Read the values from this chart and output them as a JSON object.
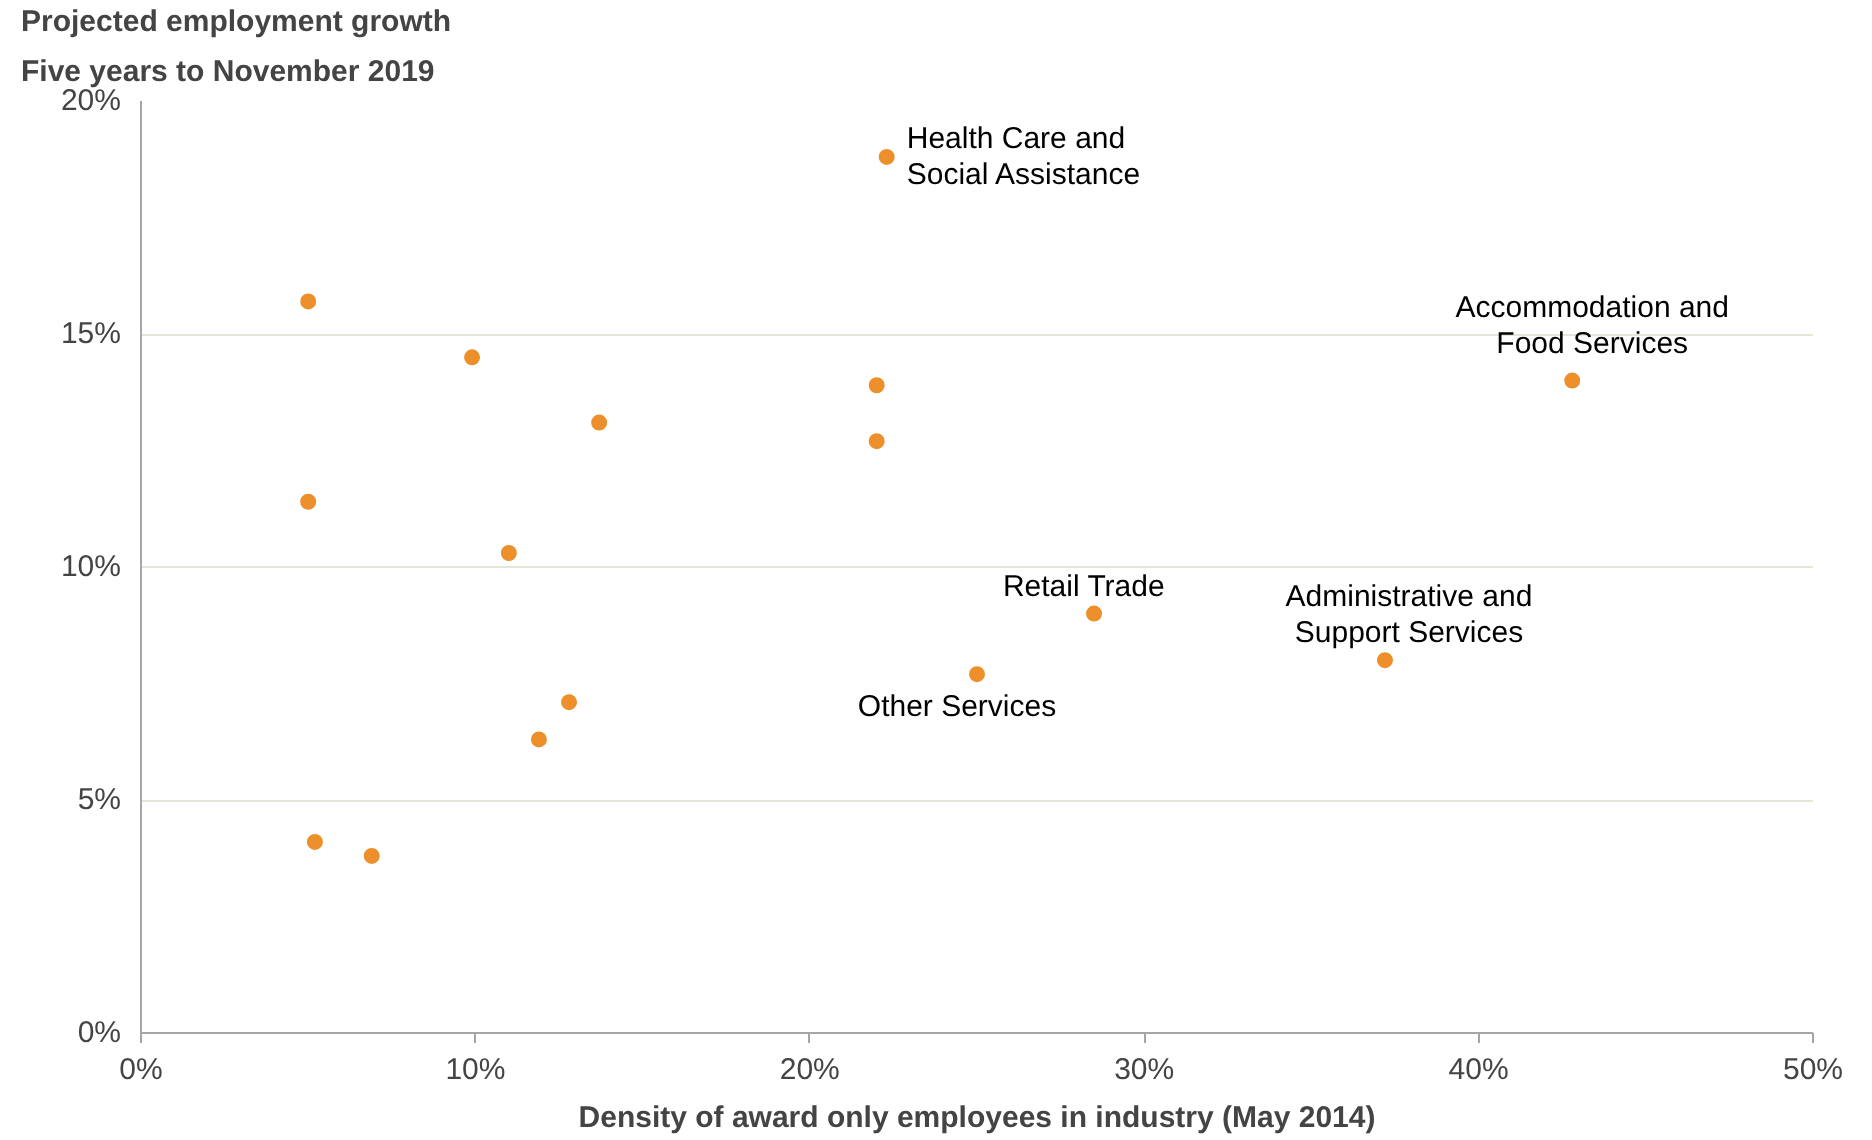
{
  "chart_data": {
    "type": "scatter",
    "title": "Projected employment growth",
    "subtitle": "Five years to November 2019",
    "xlabel": "Density of award only employees in industry (May 2014)",
    "x": [
      5.0,
      9.9,
      13.7,
      5.0,
      11.0,
      12.8,
      11.9,
      5.2,
      6.9,
      22.3,
      22.0,
      22.0,
      25.0,
      28.5,
      37.2,
      42.8
    ],
    "series": [
      {
        "color": "#ed8f2a",
        "values": [
          15.7,
          14.5,
          13.1,
          11.4,
          10.3,
          7.1,
          6.3,
          4.1,
          3.8,
          18.8,
          13.9,
          12.7,
          7.7,
          9.0,
          8.0,
          14.0
        ]
      }
    ],
    "xlim": [
      0,
      50
    ],
    "xticks": [
      {
        "value": 0,
        "label": "0%"
      },
      {
        "value": 10,
        "label": "10%"
      },
      {
        "value": 20,
        "label": "20%"
      },
      {
        "value": 30,
        "label": "30%"
      },
      {
        "value": 40,
        "label": "40%"
      },
      {
        "value": 50,
        "label": "50%"
      }
    ],
    "ylim": [
      0,
      20
    ],
    "yticks": [
      {
        "value": 0,
        "label": "0%"
      },
      {
        "value": 5,
        "label": "5%"
      },
      {
        "value": 10,
        "label": "10%"
      },
      {
        "value": 15,
        "label": "15%"
      },
      {
        "value": 20,
        "label": "20%"
      }
    ],
    "grid": "y",
    "marker": "circle",
    "annotations": [
      {
        "text": "Health Care and Social Assistance",
        "x": 22.3,
        "y": 18.8
      },
      {
        "text": "Accommodation and Food Services",
        "x": 42.8,
        "y": 14.0
      },
      {
        "text": "Retail Trade",
        "x": 28.5,
        "y": 9.0
      },
      {
        "text": "Administrative and Support Services",
        "x": 37.2,
        "y": 8.0
      },
      {
        "text": "Other Services",
        "x": 25.0,
        "y": 7.7
      }
    ]
  }
}
